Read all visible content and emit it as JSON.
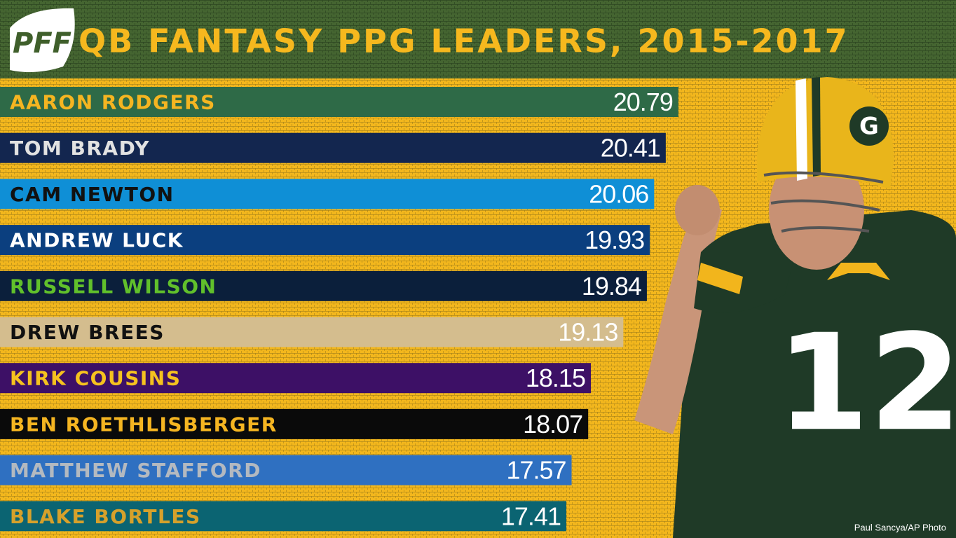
{
  "chart_data": {
    "type": "bar",
    "orientation": "horizontal",
    "logo": "PFF",
    "title": "QB FANTASY PPG LEADERS, 2015-2017",
    "categories": [
      "AARON RODGERS",
      "TOM BRADY",
      "CAM NEWTON",
      "ANDREW LUCK",
      "RUSSELL WILSON",
      "DREW BREES",
      "KIRK COUSINS",
      "BEN ROETHLISBERGER",
      "MATTHEW STAFFORD",
      "BLAKE BORTLES"
    ],
    "values": [
      20.79,
      20.41,
      20.06,
      19.93,
      19.84,
      19.13,
      18.15,
      18.07,
      17.57,
      17.41
    ],
    "colors": [
      "#2e6a47",
      "#13264f",
      "#0f8fd6",
      "#0b3f7f",
      "#0b1f3b",
      "#d4bd8e",
      "#3d1066",
      "#0a0a0a",
      "#2f70c1",
      "#0b6472"
    ],
    "label_colors": [
      "#f5b521",
      "#e2e2e2",
      "#111111",
      "#ffffff",
      "#61c02b",
      "#111111",
      "#f5c21f",
      "#f5b521",
      "#b3b9c0",
      "#d6a12b"
    ],
    "credit": "Paul Sancya/AP Photo"
  }
}
